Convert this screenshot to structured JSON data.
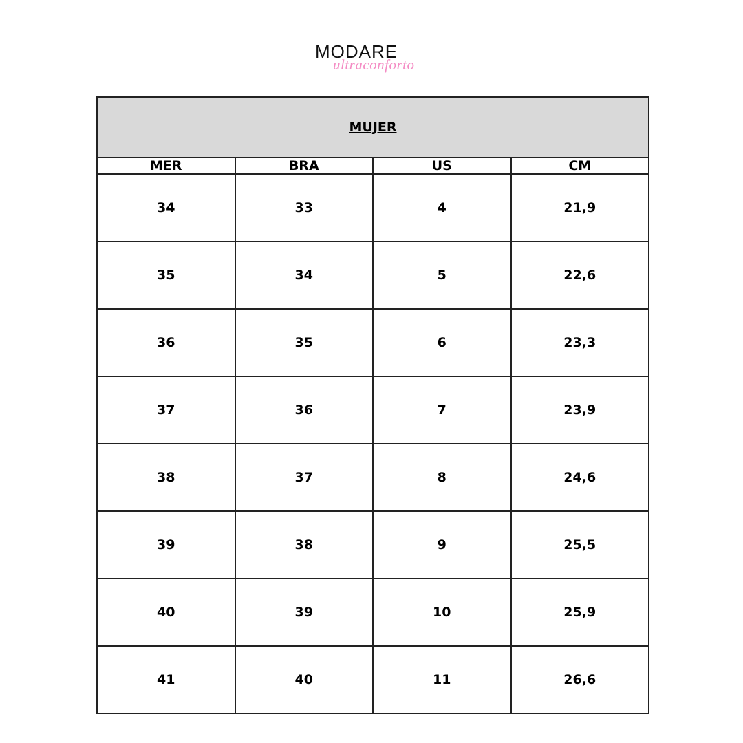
{
  "logo": {
    "brand": "MODARE",
    "tagline": "ultraconforto",
    "tagline_color": "#f48cc4"
  },
  "table": {
    "title": "MUJER",
    "header_bg": "#d9d9d9",
    "columns": [
      "MER",
      "BRA",
      "US",
      "CM"
    ],
    "rows": [
      [
        "34",
        "33",
        "4",
        "21,9"
      ],
      [
        "35",
        "34",
        "5",
        "22,6"
      ],
      [
        "36",
        "35",
        "6",
        "23,3"
      ],
      [
        "37",
        "36",
        "7",
        "23,9"
      ],
      [
        "38",
        "37",
        "8",
        "24,6"
      ],
      [
        "39",
        "38",
        "9",
        "25,5"
      ],
      [
        "40",
        "39",
        "10",
        "25,9"
      ],
      [
        "41",
        "40",
        "11",
        "26,6"
      ]
    ]
  }
}
